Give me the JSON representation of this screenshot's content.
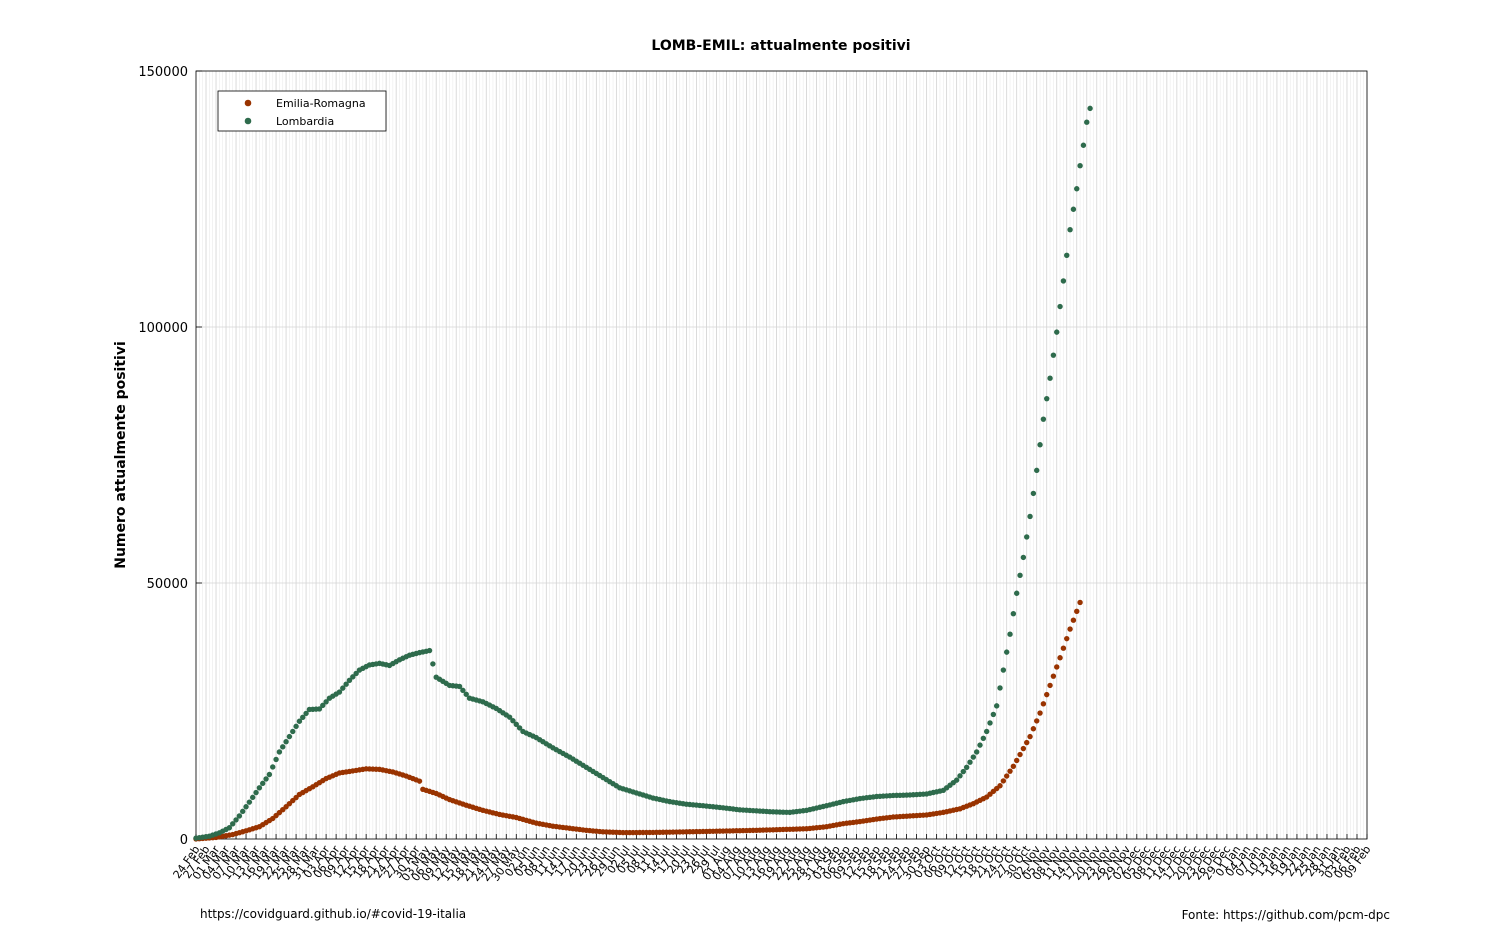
{
  "chart_data": {
    "type": "scatter",
    "title": "LOMB-EMIL: attualmente positivi",
    "xlabel": "",
    "ylabel": "Numero attualmente positivi",
    "ylim": [
      0,
      150000
    ],
    "yticks": [
      0,
      50000,
      100000,
      150000
    ],
    "ytick_labels": [
      "0",
      "50000",
      "100000",
      "150000"
    ],
    "x_range": [
      "2020-02-24",
      "2021-02-09"
    ],
    "x_tick_labels": [
      "24 Feb",
      "27 Feb",
      "01 Mar",
      "04 Mar",
      "07 Mar",
      "10 Mar",
      "13 Mar",
      "16 Mar",
      "19 Mar",
      "22 Mar",
      "25 Mar",
      "28 Mar",
      "31 Mar",
      "03 Apr",
      "06 Apr",
      "09 Apr",
      "12 Apr",
      "15 Apr",
      "18 Apr",
      "21 Apr",
      "24 Apr",
      "27 Apr",
      "30 Apr",
      "03 May",
      "06 May",
      "09 May",
      "12 May",
      "15 May",
      "18 May",
      "21 May",
      "24 May",
      "27 May",
      "30 May",
      "02 Jun",
      "05 Jun",
      "08 Jun",
      "11 Jun",
      "14 Jun",
      "17 Jun",
      "20 Jun",
      "23 Jun",
      "26 Jun",
      "29 Jun",
      "02 Jul",
      "05 Jul",
      "08 Jul",
      "11 Jul",
      "14 Jul",
      "17 Jul",
      "20 Jul",
      "23 Jul",
      "26 Jul",
      "29 Jul",
      "01 Aug",
      "04 Aug",
      "07 Aug",
      "10 Aug",
      "13 Aug",
      "16 Aug",
      "19 Aug",
      "22 Aug",
      "25 Aug",
      "28 Aug",
      "31 Aug",
      "03 Sep",
      "06 Sep",
      "09 Sep",
      "12 Sep",
      "15 Sep",
      "18 Sep",
      "21 Sep",
      "24 Sep",
      "27 Sep",
      "30 Sep",
      "03 Oct",
      "06 Oct",
      "09 Oct",
      "12 Oct",
      "15 Oct",
      "18 Oct",
      "21 Oct",
      "24 Oct",
      "27 Oct",
      "30 Oct",
      "02 Nov",
      "05 Nov",
      "08 Nov",
      "11 Nov",
      "14 Nov",
      "17 Nov",
      "20 Nov",
      "23 Nov",
      "26 Nov",
      "29 Nov",
      "02 Dec",
      "05 Dec",
      "08 Dec",
      "11 Dec",
      "14 Dec",
      "17 Dec",
      "20 Dec",
      "23 Dec",
      "26 Dec",
      "29 Dec",
      "01 Jan",
      "04 Jan",
      "07 Jan",
      "10 Jan",
      "13 Jan",
      "16 Jan",
      "19 Jan",
      "22 Jan",
      "25 Jan",
      "28 Jan",
      "31 Jan",
      "03 Feb",
      "06 Feb",
      "09 Feb"
    ],
    "grid": true,
    "legend_position": "top-left",
    "series": [
      {
        "name": "Emilia-Romagna",
        "color": "#993300",
        "points": [
          [
            "2020-02-24",
            18
          ],
          [
            "2020-03-01",
            300
          ],
          [
            "2020-03-06",
            870
          ],
          [
            "2020-03-10",
            1600
          ],
          [
            "2020-03-14",
            2400
          ],
          [
            "2020-03-18",
            4000
          ],
          [
            "2020-03-22",
            6300
          ],
          [
            "2020-03-26",
            8700
          ],
          [
            "2020-03-30",
            10200
          ],
          [
            "2020-04-03",
            11800
          ],
          [
            "2020-04-07",
            12900
          ],
          [
            "2020-04-11",
            13300
          ],
          [
            "2020-04-15",
            13700
          ],
          [
            "2020-04-19",
            13600
          ],
          [
            "2020-04-23",
            13100
          ],
          [
            "2020-04-27",
            12300
          ],
          [
            "2020-05-01",
            11300
          ],
          [
            "2020-05-02",
            9700
          ],
          [
            "2020-05-06",
            8900
          ],
          [
            "2020-05-10",
            7700
          ],
          [
            "2020-05-15",
            6600
          ],
          [
            "2020-05-20",
            5600
          ],
          [
            "2020-05-25",
            4800
          ],
          [
            "2020-05-30",
            4200
          ],
          [
            "2020-06-05",
            3100
          ],
          [
            "2020-06-10",
            2500
          ],
          [
            "2020-06-15",
            2100
          ],
          [
            "2020-06-20",
            1700
          ],
          [
            "2020-06-25",
            1400
          ],
          [
            "2020-07-01",
            1250
          ],
          [
            "2020-07-10",
            1280
          ],
          [
            "2020-07-20",
            1400
          ],
          [
            "2020-07-31",
            1550
          ],
          [
            "2020-08-10",
            1700
          ],
          [
            "2020-08-20",
            1900
          ],
          [
            "2020-08-25",
            2000
          ],
          [
            "2020-08-31",
            2400
          ],
          [
            "2020-09-05",
            3000
          ],
          [
            "2020-09-10",
            3400
          ],
          [
            "2020-09-15",
            3900
          ],
          [
            "2020-09-20",
            4300
          ],
          [
            "2020-09-25",
            4500
          ],
          [
            "2020-09-30",
            4700
          ],
          [
            "2020-10-05",
            5200
          ],
          [
            "2020-10-10",
            5900
          ],
          [
            "2020-10-14",
            6900
          ],
          [
            "2020-10-18",
            8200
          ],
          [
            "2020-10-22",
            10400
          ],
          [
            "2020-10-26",
            14200
          ],
          [
            "2020-10-28",
            16500
          ],
          [
            "2020-10-31",
            20000
          ],
          [
            "2020-11-03",
            24600
          ],
          [
            "2020-11-06",
            30000
          ],
          [
            "2020-11-09",
            35400
          ],
          [
            "2020-11-12",
            41000
          ],
          [
            "2020-11-15",
            46200
          ]
        ]
      },
      {
        "name": "Lombardia",
        "color": "#2e6b4c",
        "points": [
          [
            "2020-02-24",
            170
          ],
          [
            "2020-02-28",
            550
          ],
          [
            "2020-03-02",
            1200
          ],
          [
            "2020-03-05",
            2200
          ],
          [
            "2020-03-08",
            4500
          ],
          [
            "2020-03-11",
            7200
          ],
          [
            "2020-03-14",
            10000
          ],
          [
            "2020-03-17",
            12600
          ],
          [
            "2020-03-20",
            17000
          ],
          [
            "2020-03-23",
            20000
          ],
          [
            "2020-03-26",
            23000
          ],
          [
            "2020-03-29",
            25300
          ],
          [
            "2020-04-01",
            25400
          ],
          [
            "2020-04-04",
            27500
          ],
          [
            "2020-04-07",
            28700
          ],
          [
            "2020-04-10",
            31000
          ],
          [
            "2020-04-13",
            33000
          ],
          [
            "2020-04-16",
            34000
          ],
          [
            "2020-04-19",
            34300
          ],
          [
            "2020-04-22",
            33900
          ],
          [
            "2020-04-25",
            35000
          ],
          [
            "2020-04-28",
            35900
          ],
          [
            "2020-05-01",
            36400
          ],
          [
            "2020-05-04",
            36800
          ],
          [
            "2020-05-06",
            31600
          ],
          [
            "2020-05-10",
            30000
          ],
          [
            "2020-05-13",
            29800
          ],
          [
            "2020-05-16",
            27500
          ],
          [
            "2020-05-20",
            26800
          ],
          [
            "2020-05-24",
            25500
          ],
          [
            "2020-05-28",
            23800
          ],
          [
            "2020-06-01",
            21000
          ],
          [
            "2020-06-05",
            19800
          ],
          [
            "2020-06-10",
            17800
          ],
          [
            "2020-06-15",
            16000
          ],
          [
            "2020-06-20",
            14000
          ],
          [
            "2020-06-25",
            12000
          ],
          [
            "2020-06-30",
            10000
          ],
          [
            "2020-07-05",
            9000
          ],
          [
            "2020-07-10",
            8000
          ],
          [
            "2020-07-15",
            7300
          ],
          [
            "2020-07-20",
            6800
          ],
          [
            "2020-07-25",
            6500
          ],
          [
            "2020-07-31",
            6100
          ],
          [
            "2020-08-05",
            5700
          ],
          [
            "2020-08-10",
            5500
          ],
          [
            "2020-08-15",
            5300
          ],
          [
            "2020-08-20",
            5200
          ],
          [
            "2020-08-25",
            5600
          ],
          [
            "2020-08-31",
            6500
          ],
          [
            "2020-09-05",
            7300
          ],
          [
            "2020-09-10",
            7900
          ],
          [
            "2020-09-15",
            8300
          ],
          [
            "2020-09-20",
            8500
          ],
          [
            "2020-09-25",
            8600
          ],
          [
            "2020-09-30",
            8800
          ],
          [
            "2020-10-05",
            9500
          ],
          [
            "2020-10-09",
            11500
          ],
          [
            "2020-10-12",
            14000
          ],
          [
            "2020-10-15",
            17000
          ],
          [
            "2020-10-18",
            21000
          ],
          [
            "2020-10-21",
            26000
          ],
          [
            "2020-10-23",
            33000
          ],
          [
            "2020-10-25",
            40000
          ],
          [
            "2020-10-27",
            48000
          ],
          [
            "2020-10-29",
            55000
          ],
          [
            "2020-10-31",
            63000
          ],
          [
            "2020-11-02",
            72000
          ],
          [
            "2020-11-04",
            82000
          ],
          [
            "2020-11-06",
            90000
          ],
          [
            "2020-11-08",
            99000
          ],
          [
            "2020-11-10",
            109000
          ],
          [
            "2020-11-12",
            119000
          ],
          [
            "2020-11-14",
            127000
          ],
          [
            "2020-11-15",
            131500
          ],
          [
            "2020-11-16",
            135500
          ],
          [
            "2020-11-17",
            140000
          ],
          [
            "2020-11-18",
            142700
          ]
        ]
      }
    ]
  },
  "footer": {
    "left": "https://covidguard.github.io/#covid-19-italia",
    "right": "Fonte: https://github.com/pcm-dpc"
  }
}
